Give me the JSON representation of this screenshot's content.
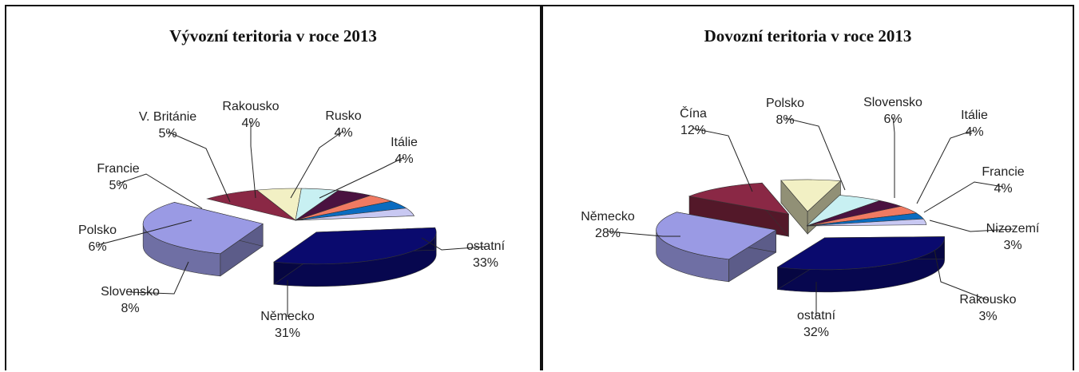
{
  "chart_data": [
    {
      "type": "pie",
      "title": "Vývozní teritoria v roce 2013",
      "slices": [
        {
          "name": "ostatní",
          "pct": "33%",
          "value": 33,
          "color": "#0a0a6e",
          "exploded": true
        },
        {
          "name": "Německo",
          "pct": "31%",
          "value": 31,
          "color": "#9a9ae4",
          "exploded": true
        },
        {
          "name": "Slovensko",
          "pct": "8%",
          "value": 8,
          "color": "#8a2845"
        },
        {
          "name": "Polsko",
          "pct": "6%",
          "value": 6,
          "color": "#f2f0c4"
        },
        {
          "name": "Francie",
          "pct": "5%",
          "value": 5,
          "color": "#c8f0f2"
        },
        {
          "name": "V. Británie",
          "pct": "5%",
          "value": 5,
          "color": "#4a1240"
        },
        {
          "name": "Rakousko",
          "pct": "4%",
          "value": 4,
          "color": "#f07a62"
        },
        {
          "name": "Rusko",
          "pct": "4%",
          "value": 4,
          "color": "#0a6cc0"
        },
        {
          "name": "Itálie",
          "pct": "4%",
          "value": 4,
          "color": "#c8c8f2"
        }
      ]
    },
    {
      "type": "pie",
      "title": "Dovozní teritoria v roce 2013",
      "slices": [
        {
          "name": "ostatní",
          "pct": "32%",
          "value": 32,
          "color": "#0a0a6e",
          "exploded": true
        },
        {
          "name": "Německo",
          "pct": "28%",
          "value": 28,
          "color": "#9a9ae4",
          "exploded": true
        },
        {
          "name": "Čína",
          "pct": "12%",
          "value": 12,
          "color": "#8a2845",
          "exploded": true
        },
        {
          "name": "Polsko",
          "pct": "8%",
          "value": 8,
          "color": "#f2f0c4",
          "exploded": true
        },
        {
          "name": "Slovensko",
          "pct": "6%",
          "value": 6,
          "color": "#c8f0f2"
        },
        {
          "name": "Itálie",
          "pct": "4%",
          "value": 4,
          "color": "#4a1240"
        },
        {
          "name": "Francie",
          "pct": "4%",
          "value": 4,
          "color": "#f07a62"
        },
        {
          "name": "Nizozemí",
          "pct": "3%",
          "value": 3,
          "color": "#0a6cc0"
        },
        {
          "name": "Rakousko",
          "pct": "3%",
          "value": 3,
          "color": "#c8c8f2"
        }
      ]
    }
  ]
}
